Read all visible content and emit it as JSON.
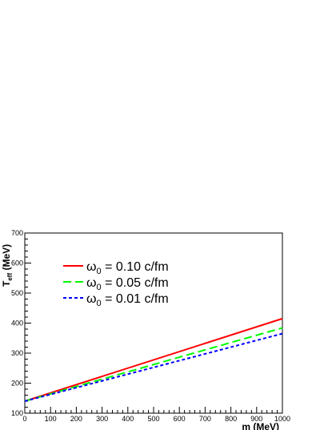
{
  "chart_data": {
    "type": "line",
    "xlabel": "m (MeV)",
    "ylabel": {
      "main": "T",
      "sub": "eff",
      "rest": " (MeV)"
    },
    "xlim": [
      0,
      1000
    ],
    "ylim": [
      100,
      700
    ],
    "x_ticks": [
      0,
      100,
      200,
      300,
      400,
      500,
      600,
      700,
      800,
      900,
      1000
    ],
    "y_ticks": [
      100,
      200,
      300,
      400,
      500,
      600,
      700
    ],
    "grid": false,
    "legend_position": "top-left",
    "series": [
      {
        "name": {
          "symbol": "ω",
          "sub": "0",
          "rest": " = 0.10 c/fm"
        },
        "color": "#ff0000",
        "dash": "solid",
        "x": [
          0,
          1000
        ],
        "y": [
          140,
          415
        ]
      },
      {
        "name": {
          "symbol": "ω",
          "sub": "0",
          "rest": " = 0.05 c/fm"
        },
        "color": "#00ff00",
        "dash": "long-dash",
        "x": [
          0,
          1000
        ],
        "y": [
          140,
          384
        ]
      },
      {
        "name": {
          "symbol": "ω",
          "sub": "0",
          "rest": " = 0.01 c/fm"
        },
        "color": "#0000ff",
        "dash": "short-dash",
        "x": [
          0,
          1000
        ],
        "y": [
          140,
          365
        ]
      }
    ]
  }
}
